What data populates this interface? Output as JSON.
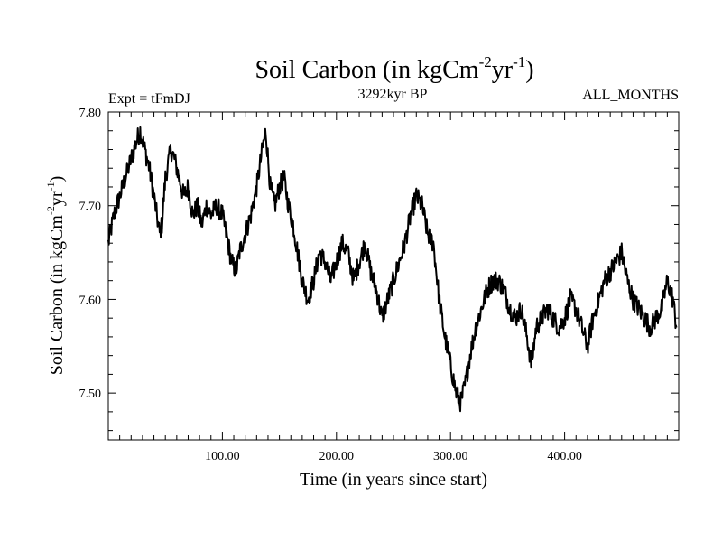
{
  "chart_data": {
    "type": "line",
    "title": "Soil Carbon (in kgCm",
    "title_sup1": "-2",
    "title_mid": "yr",
    "title_sup2": "-1",
    "title_end": ")",
    "subtitle_left": "Expt = tFmDJ",
    "subtitle_center": "3292kyr BP",
    "subtitle_right": "ALL_MONTHS",
    "xlabel": "Time (in years since start)",
    "ylabel": "Soil Carbon (in kgCm",
    "ylabel_sup1": "-2",
    "ylabel_mid": "yr",
    "ylabel_sup2": "-1",
    "ylabel_end": ")",
    "xlim": [
      0,
      500
    ],
    "ylim": [
      7.45,
      7.8
    ],
    "xticks": [
      100,
      200,
      300,
      400
    ],
    "xtick_labels": [
      "100.00",
      "200.00",
      "300.00",
      "400.00"
    ],
    "yticks": [
      7.5,
      7.6,
      7.7,
      7.8
    ],
    "ytick_labels": [
      "7.50",
      "7.60",
      "7.70",
      "7.80"
    ],
    "grid": false,
    "series": [
      {
        "name": "Soil Carbon",
        "color": "#000000",
        "x": [
          0,
          5,
          10,
          15,
          20,
          25,
          28,
          32,
          36,
          40,
          45,
          47,
          50,
          55,
          58,
          62,
          66,
          70,
          74,
          78,
          82,
          86,
          90,
          95,
          100,
          105,
          108,
          112,
          115,
          120,
          125,
          130,
          135,
          138,
          142,
          146,
          150,
          154,
          158,
          162,
          166,
          170,
          175,
          180,
          185,
          190,
          195,
          200,
          205,
          210,
          215,
          220,
          225,
          230,
          235,
          240,
          245,
          250,
          255,
          260,
          265,
          270,
          275,
          280,
          285,
          290,
          295,
          300,
          305,
          309,
          313,
          317,
          322,
          327,
          332,
          337,
          342,
          347,
          352,
          357,
          362,
          367,
          371,
          375,
          380,
          385,
          390,
          395,
          400,
          405,
          410,
          415,
          420,
          425,
          430,
          435,
          440,
          445,
          450,
          455,
          460,
          465,
          470,
          475,
          480,
          485,
          490,
          495,
          498
        ],
        "y": [
          7.66,
          7.69,
          7.71,
          7.73,
          7.75,
          7.77,
          7.78,
          7.76,
          7.74,
          7.71,
          7.67,
          7.68,
          7.73,
          7.76,
          7.75,
          7.73,
          7.71,
          7.72,
          7.69,
          7.7,
          7.68,
          7.7,
          7.69,
          7.7,
          7.69,
          7.66,
          7.64,
          7.63,
          7.65,
          7.67,
          7.69,
          7.72,
          7.76,
          7.78,
          7.72,
          7.7,
          7.72,
          7.73,
          7.7,
          7.68,
          7.65,
          7.62,
          7.6,
          7.62,
          7.65,
          7.64,
          7.62,
          7.64,
          7.66,
          7.65,
          7.62,
          7.64,
          7.66,
          7.63,
          7.61,
          7.58,
          7.6,
          7.62,
          7.64,
          7.66,
          7.69,
          7.71,
          7.7,
          7.67,
          7.66,
          7.6,
          7.56,
          7.53,
          7.5,
          7.49,
          7.51,
          7.54,
          7.57,
          7.59,
          7.61,
          7.62,
          7.62,
          7.61,
          7.59,
          7.58,
          7.59,
          7.56,
          7.53,
          7.57,
          7.58,
          7.59,
          7.58,
          7.57,
          7.58,
          7.6,
          7.59,
          7.57,
          7.55,
          7.58,
          7.6,
          7.62,
          7.63,
          7.64,
          7.65,
          7.62,
          7.6,
          7.59,
          7.58,
          7.57,
          7.58,
          7.59,
          7.62,
          7.6,
          7.57
        ]
      }
    ]
  }
}
